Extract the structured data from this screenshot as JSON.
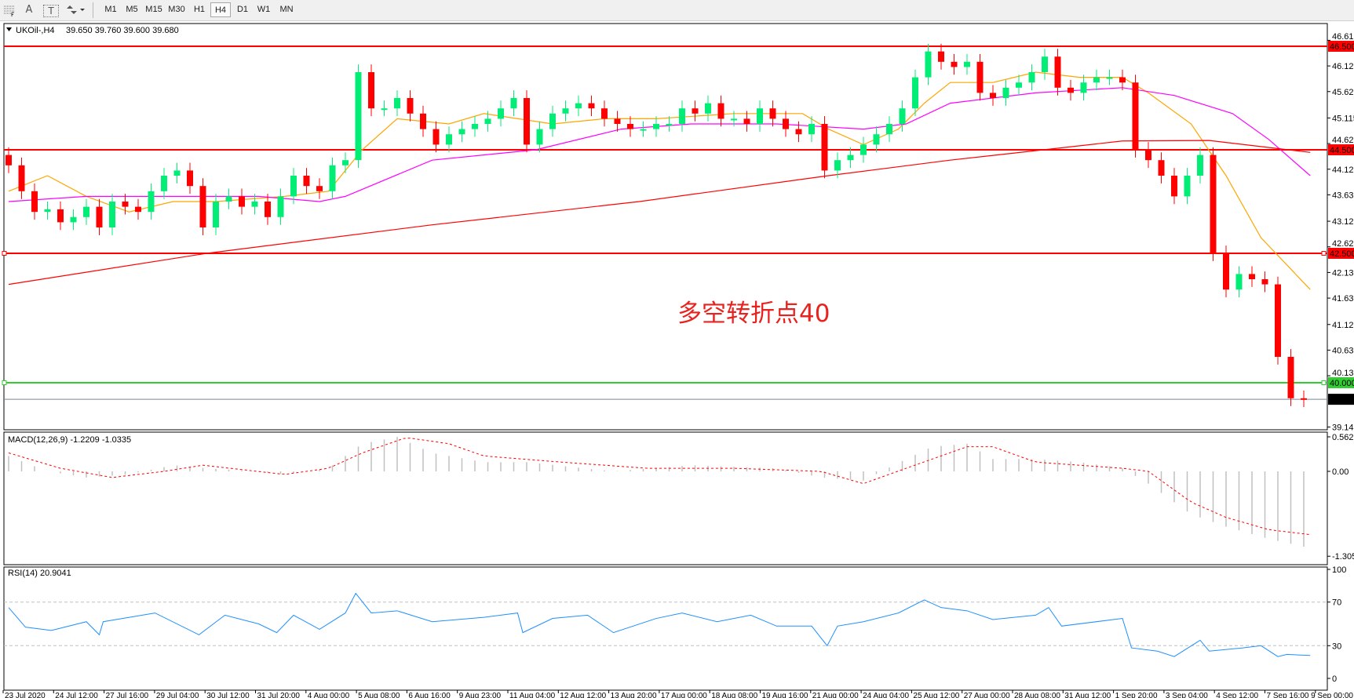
{
  "toolbar": {
    "icons": [
      "period-separator-icon",
      "text-icon",
      "text-label-icon",
      "arrows-icon"
    ],
    "text_icon_glyph": "A",
    "label_icon_glyph": "T",
    "timeframes": [
      "M1",
      "M5",
      "M15",
      "M30",
      "H1",
      "H4",
      "D1",
      "W1",
      "MN"
    ],
    "selected_timeframe": "H4"
  },
  "main": {
    "symbol_label": "UKOil-,H4",
    "ohlc_label": "39.650 39.760 39.600 39.680",
    "annotation": "多空转折点40",
    "annotation_color": "#e8221f",
    "price_ticks": [
      "46.615",
      "46.120",
      "45.625",
      "45.115",
      "44.620",
      "44.125",
      "43.630",
      "43.120",
      "42.625",
      "42.130",
      "41.635",
      "41.125",
      "40.630",
      "40.135",
      "39.145"
    ],
    "hlines": [
      {
        "price": 46.5,
        "label": "46.500",
        "color": "#ff0000"
      },
      {
        "price": 44.5,
        "label": "44.500",
        "color": "#ff0000"
      },
      {
        "price": 42.5,
        "label": "42.500",
        "color": "#ff0000"
      },
      {
        "price": 40.0,
        "label": "40.000",
        "color": "#32cd32"
      }
    ],
    "current_price": {
      "price": 39.68,
      "label": "39.680",
      "color": "#778899"
    },
    "bull_color": "#00ee76",
    "bear_color": "#ff0000"
  },
  "macd": {
    "label": "MACD(12,26,9) -1.2209 -1.0335",
    "ticks": [
      "0.562",
      "0.00",
      "-1.3058"
    ],
    "hist_color": "#c0c0c0",
    "signal_color": "#ff0000"
  },
  "rsi": {
    "label": "RSI(14) 20.9041",
    "ticks": [
      "100",
      "70",
      "30",
      "0"
    ],
    "color": "#1e90ff"
  },
  "time_axis": [
    "23 Jul 2020",
    "24 Jul 12:00",
    "27 Jul 16:00",
    "29 Jul 04:00",
    "30 Jul 12:00",
    "31 Jul 20:00",
    "4 Aug 00:00",
    "5 Aug 08:00",
    "6 Aug 16:00",
    "9 Aug 23:00",
    "11 Aug 04:00",
    "12 Aug 12:00",
    "13 Aug 20:00",
    "17 Aug 00:00",
    "18 Aug 08:00",
    "19 Aug 16:00",
    "21 Aug 00:00",
    "24 Aug 04:00",
    "25 Aug 12:00",
    "27 Aug 00:00",
    "28 Aug 08:00",
    "31 Aug 12:00",
    "1 Sep 20:00",
    "3 Sep 04:00",
    "4 Sep 12:00",
    "7 Sep 16:00",
    "9 Sep 00:00"
  ],
  "chart_data": {
    "type": "candlestick",
    "price_range": [
      39.145,
      46.615
    ],
    "closes": [
      44.2,
      43.7,
      43.3,
      43.35,
      43.1,
      43.2,
      43.4,
      43.0,
      43.5,
      43.4,
      43.3,
      43.7,
      44.0,
      44.1,
      43.8,
      43.0,
      43.5,
      43.6,
      43.4,
      43.5,
      43.2,
      43.6,
      44.0,
      43.8,
      43.7,
      44.2,
      44.3,
      46.0,
      45.3,
      45.3,
      45.5,
      45.2,
      44.9,
      44.6,
      44.8,
      44.9,
      45.0,
      45.1,
      45.3,
      45.5,
      44.6,
      44.9,
      45.2,
      45.3,
      45.4,
      45.3,
      45.1,
      45.0,
      44.9,
      44.9,
      45.0,
      45.0,
      45.3,
      45.2,
      45.4,
      45.1,
      45.1,
      45.0,
      45.3,
      45.1,
      44.9,
      44.8,
      45.0,
      44.1,
      44.3,
      44.4,
      44.6,
      44.8,
      45.0,
      45.3,
      45.9,
      46.4,
      46.2,
      46.1,
      46.2,
      45.6,
      45.5,
      45.7,
      45.8,
      46.0,
      46.3,
      45.7,
      45.6,
      45.8,
      45.9,
      45.9,
      45.8,
      44.5,
      44.3,
      44.0,
      43.6,
      44.0,
      44.4,
      42.5,
      41.8,
      42.1,
      42.0,
      41.9,
      40.5,
      39.7,
      39.68
    ],
    "moving_averages": [
      {
        "color": "#ffa500",
        "points": [
          [
            0,
            43.7
          ],
          [
            3,
            44.0
          ],
          [
            6,
            43.6
          ],
          [
            9.3,
            43.3
          ],
          [
            12.7,
            43.5
          ],
          [
            16,
            43.5
          ],
          [
            21.3,
            43.6
          ],
          [
            24.7,
            43.7
          ],
          [
            27.3,
            44.5
          ],
          [
            30,
            45.1
          ],
          [
            34,
            45.0
          ],
          [
            36.7,
            45.2
          ],
          [
            42,
            45.0
          ],
          [
            46,
            45.1
          ],
          [
            50,
            45.1
          ],
          [
            56,
            45.2
          ],
          [
            61.3,
            45.2
          ],
          [
            63.3,
            44.9
          ],
          [
            66,
            44.6
          ],
          [
            68.7,
            44.9
          ],
          [
            70.7,
            45.4
          ],
          [
            72.7,
            45.8
          ],
          [
            76,
            45.8
          ],
          [
            79.3,
            46.0
          ],
          [
            82.7,
            45.9
          ],
          [
            86,
            45.9
          ],
          [
            88,
            45.6
          ],
          [
            91.3,
            45.0
          ],
          [
            94,
            44.0
          ],
          [
            96.7,
            42.8
          ],
          [
            100.5,
            41.8
          ]
        ]
      },
      {
        "color": "#ff00ff",
        "points": [
          [
            0,
            43.5
          ],
          [
            6,
            43.6
          ],
          [
            12.7,
            43.6
          ],
          [
            19.3,
            43.6
          ],
          [
            24,
            43.5
          ],
          [
            26,
            43.6
          ],
          [
            32.7,
            44.3
          ],
          [
            40.7,
            44.5
          ],
          [
            47.3,
            44.9
          ],
          [
            52.7,
            45.0
          ],
          [
            59.3,
            45.0
          ],
          [
            66,
            44.9
          ],
          [
            69.3,
            45.0
          ],
          [
            72.7,
            45.4
          ],
          [
            79.3,
            45.6
          ],
          [
            86,
            45.7
          ],
          [
            90,
            45.55
          ],
          [
            94.5,
            45.2
          ],
          [
            97.3,
            44.7
          ],
          [
            100.5,
            44.0
          ]
        ]
      },
      {
        "color": "#ff0000",
        "points": [
          [
            0,
            41.9
          ],
          [
            15.3,
            42.5
          ],
          [
            32.7,
            43.05
          ],
          [
            48.7,
            43.5
          ],
          [
            63.3,
            44.0
          ],
          [
            72.7,
            44.3
          ],
          [
            86,
            44.67
          ],
          [
            92.7,
            44.68
          ],
          [
            100.5,
            44.45
          ]
        ]
      }
    ],
    "macd_histogram": [
      [
        0,
        0.25
      ],
      [
        3,
        0.0
      ],
      [
        6,
        -0.1
      ],
      [
        9.3,
        -0.05
      ],
      [
        12.7,
        0.1
      ],
      [
        15.3,
        0.05
      ],
      [
        19.3,
        0.0
      ],
      [
        21.3,
        -0.05
      ],
      [
        24.7,
        0.05
      ],
      [
        27.3,
        0.45
      ],
      [
        30,
        0.56
      ],
      [
        32.7,
        0.3
      ],
      [
        36.7,
        0.15
      ],
      [
        40,
        0.15
      ],
      [
        46.7,
        0.0
      ],
      [
        52.7,
        0.1
      ],
      [
        59.3,
        0.05
      ],
      [
        62.7,
        -0.1
      ],
      [
        66,
        -0.15
      ],
      [
        69.3,
        0.2
      ],
      [
        71.3,
        0.4
      ],
      [
        74,
        0.45
      ],
      [
        76,
        0.2
      ],
      [
        79.3,
        0.2
      ],
      [
        82.7,
        0.15
      ],
      [
        86,
        0.05
      ],
      [
        88,
        -0.2
      ],
      [
        91.3,
        -0.7
      ],
      [
        94,
        -0.9
      ],
      [
        97.3,
        -1.1
      ],
      [
        100.5,
        -1.25
      ]
    ],
    "macd_signal": [
      [
        0,
        0.3
      ],
      [
        4,
        0.05
      ],
      [
        8,
        -0.1
      ],
      [
        12,
        0.0
      ],
      [
        15,
        0.1
      ],
      [
        21.3,
        -0.05
      ],
      [
        24.7,
        0.05
      ],
      [
        27.3,
        0.3
      ],
      [
        30.7,
        0.55
      ],
      [
        34,
        0.45
      ],
      [
        36.7,
        0.25
      ],
      [
        42.7,
        0.15
      ],
      [
        49.3,
        0.05
      ],
      [
        56,
        0.05
      ],
      [
        62.7,
        0.0
      ],
      [
        66,
        -0.2
      ],
      [
        69.3,
        0.05
      ],
      [
        74,
        0.4
      ],
      [
        76,
        0.4
      ],
      [
        79.3,
        0.15
      ],
      [
        86,
        0.05
      ],
      [
        88,
        0.0
      ],
      [
        91.3,
        -0.5
      ],
      [
        94,
        -0.75
      ],
      [
        97.3,
        -0.95
      ],
      [
        100.5,
        -1.03
      ]
    ],
    "rsi": [
      [
        0,
        65
      ],
      [
        1.3,
        47
      ],
      [
        3.3,
        44
      ],
      [
        6,
        52
      ],
      [
        7,
        40
      ],
      [
        7.3,
        52
      ],
      [
        11.3,
        60
      ],
      [
        14.7,
        40
      ],
      [
        16.7,
        58
      ],
      [
        19.3,
        50
      ],
      [
        20.7,
        42
      ],
      [
        22,
        58
      ],
      [
        24,
        45
      ],
      [
        26,
        60
      ],
      [
        26.8,
        78
      ],
      [
        28,
        60
      ],
      [
        30,
        62
      ],
      [
        32.7,
        52
      ],
      [
        36.7,
        56
      ],
      [
        39.3,
        60
      ],
      [
        39.7,
        42
      ],
      [
        42,
        55
      ],
      [
        44.7,
        58
      ],
      [
        46.7,
        42
      ],
      [
        50,
        55
      ],
      [
        52,
        60
      ],
      [
        54.7,
        52
      ],
      [
        57.3,
        58
      ],
      [
        59.3,
        48
      ],
      [
        62,
        48
      ],
      [
        63.2,
        30
      ],
      [
        64,
        48
      ],
      [
        66,
        52
      ],
      [
        68.7,
        60
      ],
      [
        70.7,
        72
      ],
      [
        72,
        65
      ],
      [
        74,
        62
      ],
      [
        76,
        54
      ],
      [
        79.3,
        58
      ],
      [
        80.3,
        65
      ],
      [
        81.3,
        48
      ],
      [
        86,
        55
      ],
      [
        86.7,
        28
      ],
      [
        88.7,
        25
      ],
      [
        90,
        20
      ],
      [
        92,
        35
      ],
      [
        92.7,
        25
      ],
      [
        95.3,
        28
      ],
      [
        96.7,
        30
      ],
      [
        98,
        20
      ],
      [
        98.7,
        22
      ],
      [
        100.5,
        21
      ]
    ],
    "rsi_levels": [
      70,
      30
    ],
    "macd_range": [
      -1.3058,
      0.562
    ],
    "rsi_range": [
      0,
      100
    ]
  }
}
